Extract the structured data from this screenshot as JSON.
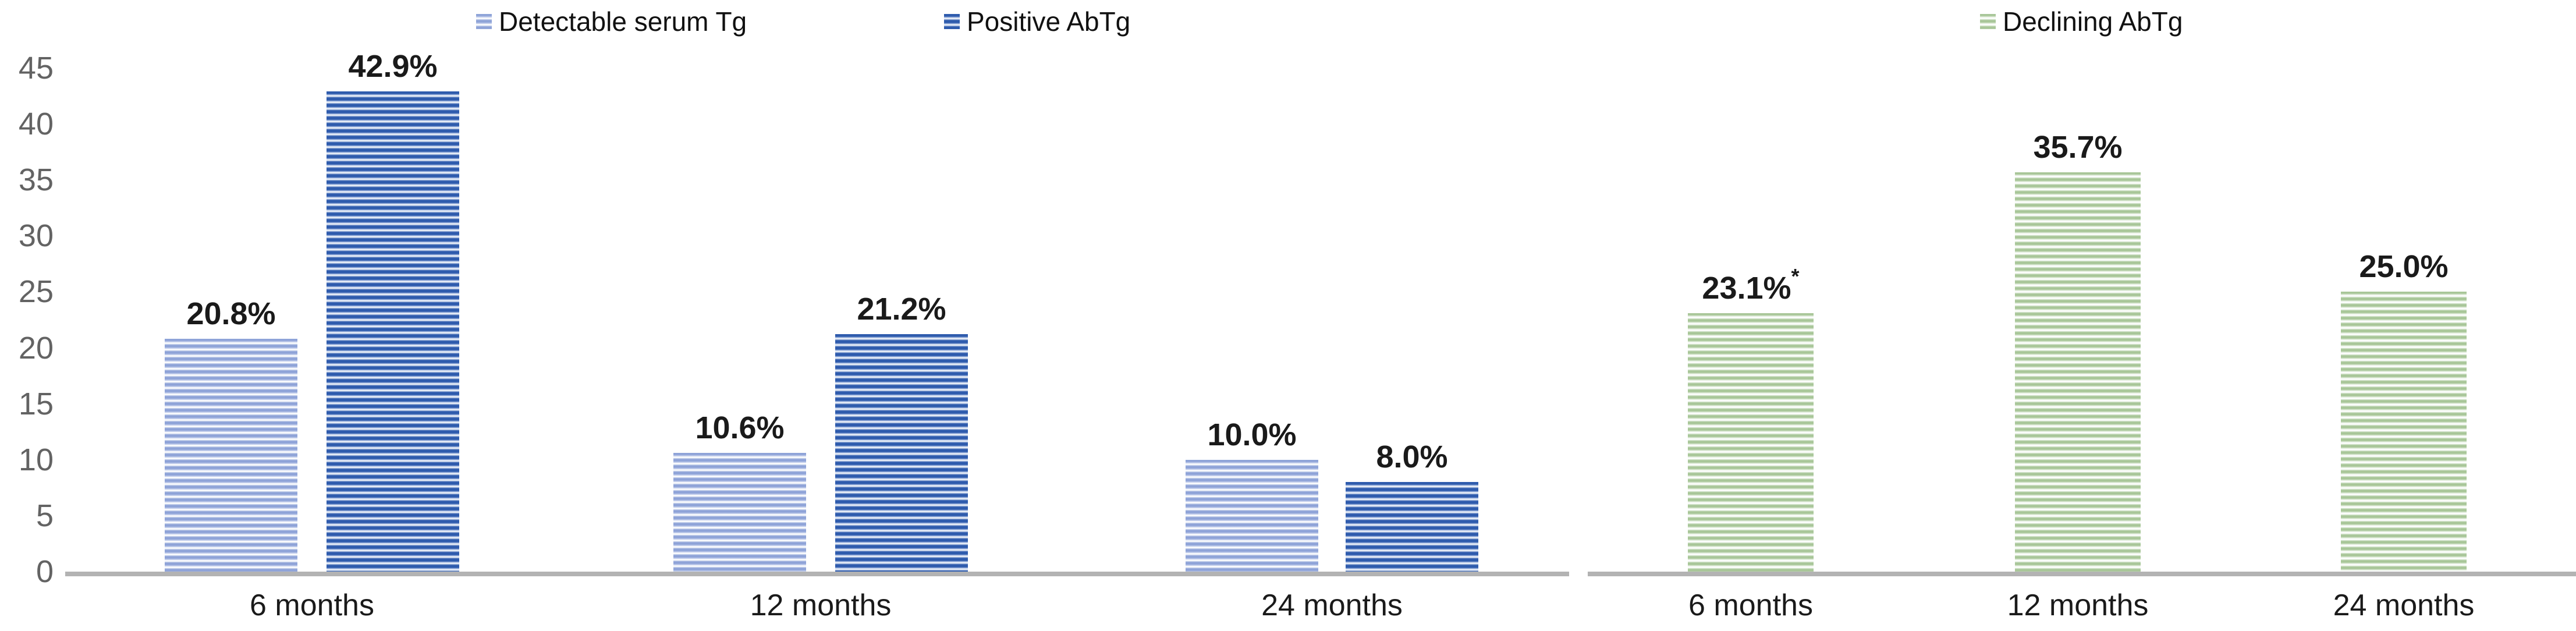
{
  "legend": {
    "items": [
      {
        "label": "Detectable serum Tg",
        "series": "detectable-serum-tg",
        "swatch_color": "#8ea3d8"
      },
      {
        "label": "Positive AbTg",
        "series": "positive-abtg",
        "swatch_color": "#2e5bad"
      },
      {
        "label": "Declining AbTg",
        "series": "declining-abtg",
        "swatch_color": "#a8c698"
      }
    ]
  },
  "colors": {
    "light_blue_stripe": "#8ea3d8",
    "dark_blue_stripe": "#2e5bad",
    "green_stripe": "#a8c698",
    "axis_line": "#b3b3b3",
    "tick_text": "#636363",
    "value_text": "#1a1a1a"
  },
  "chart_data": {
    "type": "bar",
    "title": "",
    "xlabel": "",
    "ylabel": "",
    "ylim": [
      0,
      45
    ],
    "yticks": [
      0,
      5,
      10,
      15,
      20,
      25,
      30,
      35,
      40,
      45
    ],
    "grid": false,
    "legend_position": "top",
    "bar_pattern": "horizontal-stripes",
    "panels": [
      {
        "name": "left-panel",
        "categories": [
          "6 months",
          "12 months",
          "24 months"
        ],
        "series": [
          {
            "name": "Detectable serum Tg",
            "color": "#8ea3d8",
            "fill_class": "fill-lightblue",
            "values": [
              20.8,
              10.6,
              10.0
            ],
            "data_labels": [
              "20.8%",
              "10.6%",
              "10.0%"
            ],
            "annotations": [
              "",
              "",
              ""
            ]
          },
          {
            "name": "Positive AbTg",
            "color": "#2e5bad",
            "fill_class": "fill-darkblue",
            "values": [
              42.9,
              21.2,
              8.0
            ],
            "data_labels": [
              "42.9%",
              "21.2%",
              "8.0%"
            ],
            "annotations": [
              "",
              "",
              ""
            ]
          }
        ]
      },
      {
        "name": "right-panel",
        "categories": [
          "6 months",
          "12 months",
          "24 months"
        ],
        "series": [
          {
            "name": "Declining AbTg",
            "color": "#a8c698",
            "fill_class": "fill-green",
            "values": [
              23.1,
              35.7,
              25.0
            ],
            "data_labels": [
              "23.1%",
              "35.7%",
              "25.0%"
            ],
            "annotations": [
              "*",
              "",
              ""
            ]
          }
        ]
      }
    ]
  }
}
